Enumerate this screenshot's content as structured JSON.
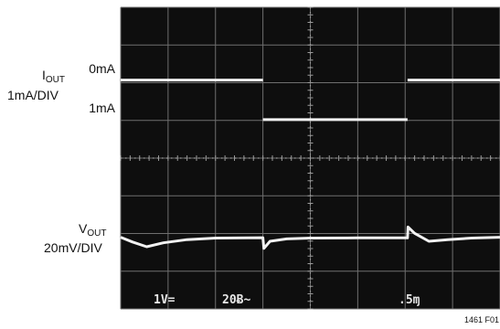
{
  "chart_data": {
    "type": "line",
    "title": "",
    "left_labels": {
      "iout_name_main": "I",
      "iout_name_sub": "OUT",
      "iout_scale": "1mA/DIV",
      "iout_level_0": "0mA",
      "iout_level_1": "1mA",
      "vout_name_main": "V",
      "vout_name_sub": "OUT",
      "vout_scale": "20mV/DIV"
    },
    "screen_readout": {
      "ch1": "1V=",
      "ch2": "20Ƀ~",
      "timebase": ".5ɱ"
    },
    "figure_id": "1461 F01",
    "grid": {
      "divisions_x": 8,
      "divisions_y": 8,
      "visible": true
    },
    "series": [
      {
        "trace": "iout",
        "x": [
          0,
          3.0,
          3.0,
          6.05,
          6.05,
          8
        ],
        "y": [
          0,
          0,
          1,
          1,
          0,
          0
        ]
      },
      {
        "trace": "vout",
        "x": [
          0,
          0.25,
          0.55,
          0.9,
          1.4,
          2.0,
          3.0,
          3.02,
          3.15,
          3.5,
          4.0,
          5.0,
          6.05,
          6.06,
          6.2,
          6.5,
          6.9,
          7.4,
          8
        ],
        "y": [
          0,
          -6,
          -12,
          -7,
          -3,
          -1,
          -0.5,
          -14,
          -5,
          -2,
          -1,
          -0.8,
          -0.8,
          13,
          5,
          -5,
          -3,
          -1,
          0
        ]
      }
    ],
    "colors": {
      "screen": "#0e0e0e",
      "grid": "#6f6f6f",
      "trace": "#f2f2f2"
    }
  }
}
